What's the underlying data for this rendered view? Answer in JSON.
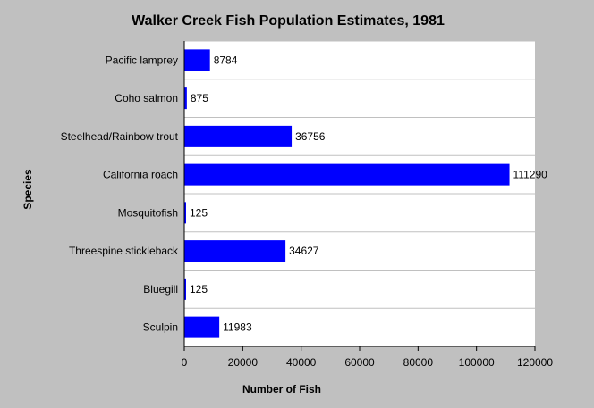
{
  "chart_data": {
    "type": "bar",
    "orientation": "horizontal",
    "title": "Walker Creek Fish Population Estimates, 1981",
    "xlabel": "Number of Fish",
    "ylabel": "Species",
    "categories": [
      "Pacific lamprey",
      "Coho salmon",
      "Steelhead/Rainbow trout",
      "California roach",
      "Mosquitofish",
      "Threespine stickleback",
      "Bluegill",
      "Sculpin"
    ],
    "values": [
      8784,
      875,
      36756,
      111290,
      125,
      34627,
      125,
      11983
    ],
    "value_labels": [
      "8784",
      "875",
      "36756",
      "111290",
      "125",
      "34627",
      "125",
      "11983"
    ],
    "xlim": [
      0,
      120000
    ],
    "xticks": [
      0,
      20000,
      40000,
      60000,
      80000,
      100000,
      120000
    ],
    "xtick_labels": [
      "0",
      "20000",
      "40000",
      "60000",
      "80000",
      "100000",
      "120000"
    ],
    "grid": true,
    "colors": {
      "bar": "#0000ff",
      "background": "#c0c0c0",
      "plot_background": "#ffffff",
      "grid": "#c0c0c0"
    }
  }
}
